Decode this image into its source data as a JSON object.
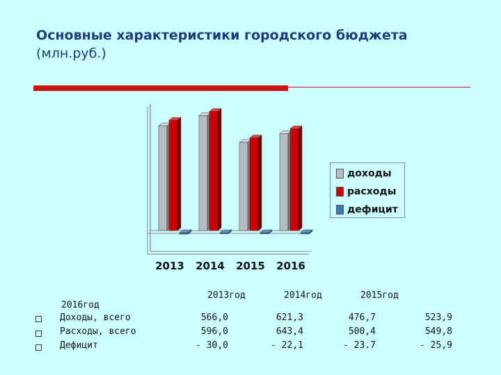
{
  "header": {
    "title": "Основные характеристики городского бюджета",
    "subtitle": "(млн.руб.)"
  },
  "colors": {
    "background": "#ccffff",
    "accent_red": "#cc1414",
    "title_blue": "#1f3a7a",
    "income": "#b8bcc4",
    "expense": "#cc0000",
    "deficit": "#3a78b0"
  },
  "chart_data": {
    "type": "bar",
    "style": "3d-clustered",
    "categories": [
      "2013",
      "2014",
      "2015",
      "2016"
    ],
    "series": [
      {
        "name": "доходы",
        "values": [
          566.0,
          621.3,
          476.7,
          523.9
        ]
      },
      {
        "name": "расходы",
        "values": [
          596.0,
          643.4,
          500.4,
          549.8
        ]
      },
      {
        "name": "дефицит",
        "values": [
          -30.0,
          -22.1,
          -23.7,
          -25.9
        ]
      }
    ],
    "ylim": [
      -40,
      700
    ],
    "grid": false,
    "legend": "right"
  },
  "table": {
    "headers": [
      "2013год",
      "2014год",
      "2015год"
    ],
    "extra_header": "2016год",
    "rows": [
      {
        "label": "Доходы, всего",
        "values": [
          "566,0",
          "621,3",
          "476,7",
          "523,9"
        ]
      },
      {
        "label": "Расходы, всего",
        "values": [
          "596,0",
          "643,4",
          "500,4",
          "549,8"
        ]
      },
      {
        "label": "Дефицит",
        "values": [
          "- 30,0",
          "- 22,1",
          "- 23.7",
          "- 25,9"
        ]
      }
    ]
  }
}
